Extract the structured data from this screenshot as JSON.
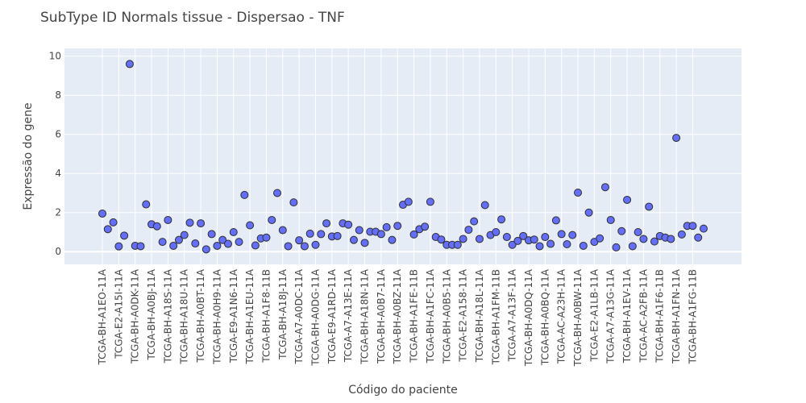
{
  "chart_data": {
    "type": "scatter",
    "title": "SubType ID Normals tissue - Dispersao - TNF",
    "xlabel": "Código do paciente",
    "ylabel": "Expressão do gene",
    "ylim": [
      -0.65,
      10.4
    ],
    "yticks": [
      0,
      2,
      4,
      6,
      8,
      10
    ],
    "grid": true,
    "colors": {
      "plot_bg": "#E5ECF6",
      "grid": "#ffffff",
      "marker": "#636EFA",
      "marker_edge": "#2f2f2f"
    },
    "x_tick_labels": [
      "TCGA-BH-A1EO-11A",
      "TCGA-E2-A15I-11A",
      "TCGA-BH-A0DK-11A",
      "TCGA-BH-A0BJ-11A",
      "TCGA-BH-A18S-11A",
      "TCGA-BH-A18U-11A",
      "TCGA-BH-A0BT-11A",
      "TCGA-BH-A0H9-11A",
      "TCGA-E9-A1N6-11A",
      "TCGA-BH-A1EU-11A",
      "TCGA-BH-A1F8-11B",
      "TCGA-BH-A18J-11A",
      "TCGA-A7-A0DC-11A",
      "TCGA-BH-A0DG-11A",
      "TCGA-E9-A1RD-11A",
      "TCGA-A7-A13E-11A",
      "TCGA-BH-A18N-11A",
      "TCGA-BH-A0B7-11A",
      "TCGA-BH-A0BZ-11A",
      "TCGA-BH-A1FE-11B",
      "TCGA-BH-A1FC-11A",
      "TCGA-BH-A0B5-11A",
      "TCGA-E2-A158-11A",
      "TCGA-BH-A18L-11A",
      "TCGA-BH-A1FM-11B",
      "TCGA-A7-A13F-11A",
      "TCGA-BH-A0DQ-11A",
      "TCGA-BH-A0BQ-11A",
      "TCGA-AC-A23H-11A",
      "TCGA-BH-A0BW-11A",
      "TCGA-E2-A1LB-11A",
      "TCGA-A7-A13G-11A",
      "TCGA-BH-A1EV-11A",
      "TCGA-AC-A2FB-11A",
      "TCGA-BH-A1F6-11B",
      "TCGA-BH-A1FN-11A",
      "TCGA-BH-A1FG-11B"
    ],
    "y": [
      1.95,
      1.15,
      1.5,
      0.27,
      0.82,
      9.6,
      0.3,
      0.28,
      2.42,
      1.4,
      1.3,
      0.5,
      1.62,
      0.3,
      0.6,
      0.85,
      1.48,
      0.42,
      1.45,
      0.12,
      0.9,
      0.3,
      0.6,
      0.4,
      1.0,
      0.5,
      2.9,
      1.35,
      0.32,
      0.68,
      0.72,
      1.62,
      3.0,
      1.1,
      0.28,
      2.52,
      0.58,
      0.28,
      0.92,
      0.35,
      0.9,
      1.45,
      0.78,
      0.8,
      1.45,
      1.38,
      0.6,
      1.1,
      0.45,
      1.02,
      1.02,
      0.9,
      1.25,
      0.6,
      1.32,
      2.4,
      2.55,
      0.88,
      1.15,
      1.28,
      2.55,
      0.75,
      0.62,
      0.35,
      0.35,
      0.35,
      0.65,
      1.12,
      1.55,
      0.65,
      2.38,
      0.85,
      1.0,
      1.65,
      0.75,
      0.35,
      0.55,
      0.8,
      0.58,
      0.62,
      0.28,
      0.75,
      0.4,
      1.6,
      0.9,
      0.38,
      0.85,
      3.02,
      0.3,
      2.0,
      0.5,
      0.68,
      3.3,
      1.62,
      0.22,
      1.05,
      2.65,
      0.28,
      1.0,
      0.65,
      2.3,
      0.52,
      0.8,
      0.72,
      0.65,
      5.82,
      0.88,
      1.32,
      1.32,
      0.72,
      1.18
    ]
  }
}
